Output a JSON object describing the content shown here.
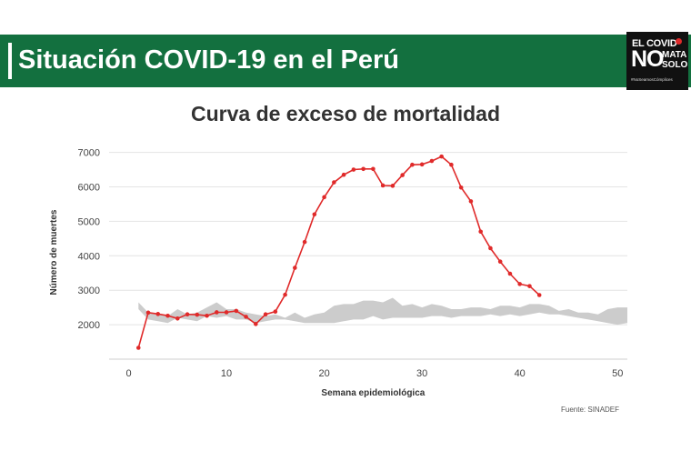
{
  "banner": {
    "title": "Situación COVID-19 en el Perú"
  },
  "logo": {
    "line1": "EL COVID",
    "line2": "NO",
    "line3": "MATA",
    "line4": "SOLO",
    "hashtag": "#NoSeamosCómplices"
  },
  "colors": {
    "banner": "#13703f",
    "series": "#e02a2a",
    "band": "#cccccc"
  },
  "source": "Fuente: SINADEF",
  "chart_data": {
    "type": "line",
    "title": "Curva de exceso de mortalidad",
    "xlabel": "Semana epidemiológica",
    "ylabel": "Número de muertes",
    "xlim": [
      -2,
      51
    ],
    "ylim": [
      1000,
      7200
    ],
    "xticks": [
      0,
      10,
      20,
      30,
      40,
      50
    ],
    "yticks": [
      2000,
      3000,
      4000,
      5000,
      6000,
      7000
    ],
    "grid": "horizontal",
    "series": [
      {
        "x": [
          1,
          2,
          3,
          4,
          5,
          6,
          7,
          8,
          9,
          10,
          11,
          12,
          13,
          14,
          15,
          16,
          17,
          18,
          19,
          20,
          21,
          22,
          23,
          24,
          25,
          26,
          27,
          28,
          29,
          30,
          31,
          32,
          33,
          34,
          35,
          36,
          37,
          38,
          39,
          40,
          41,
          42
        ],
        "values": [
          1330,
          2350,
          2310,
          2260,
          2180,
          2300,
          2290,
          2260,
          2360,
          2360,
          2400,
          2230,
          2020,
          2300,
          2380,
          2870,
          3650,
          4400,
          5200,
          5700,
          6130,
          6350,
          6500,
          6520,
          6520,
          6040,
          6030,
          6340,
          6640,
          6650,
          6750,
          6880,
          6640,
          5980,
          5580,
          4700,
          4220,
          3830,
          3480,
          3180,
          3120,
          2860
        ]
      }
    ],
    "band": {
      "x": [
        1,
        2,
        3,
        4,
        5,
        6,
        7,
        8,
        9,
        10,
        11,
        12,
        13,
        14,
        15,
        16,
        17,
        18,
        19,
        20,
        21,
        22,
        23,
        24,
        25,
        26,
        27,
        28,
        29,
        30,
        31,
        32,
        33,
        34,
        35,
        36,
        37,
        38,
        39,
        40,
        41,
        42,
        43,
        44,
        45,
        46,
        47,
        48,
        49,
        50,
        51
      ],
      "upper": [
        2650,
        2350,
        2300,
        2250,
        2450,
        2300,
        2350,
        2500,
        2650,
        2450,
        2450,
        2350,
        2300,
        2250,
        2300,
        2200,
        2350,
        2200,
        2300,
        2350,
        2550,
        2600,
        2600,
        2700,
        2700,
        2650,
        2780,
        2550,
        2600,
        2500,
        2600,
        2550,
        2450,
        2450,
        2500,
        2500,
        2450,
        2550,
        2550,
        2500,
        2600,
        2600,
        2550,
        2400,
        2450,
        2350,
        2350,
        2300,
        2450,
        2500,
        2500
      ],
      "lower": [
        2450,
        2150,
        2100,
        2050,
        2200,
        2150,
        2100,
        2250,
        2200,
        2250,
        2150,
        2150,
        2050,
        2100,
        2150,
        2150,
        2100,
        2050,
        2050,
        2050,
        2050,
        2100,
        2150,
        2150,
        2250,
        2150,
        2200,
        2200,
        2200,
        2200,
        2250,
        2250,
        2200,
        2250,
        2250,
        2250,
        2300,
        2250,
        2300,
        2250,
        2300,
        2350,
        2300,
        2300,
        2250,
        2200,
        2150,
        2100,
        2050,
        2000,
        2050
      ]
    }
  }
}
